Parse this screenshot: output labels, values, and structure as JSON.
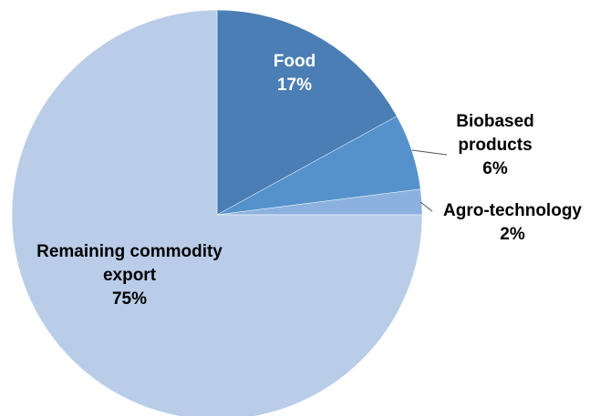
{
  "chart_data": {
    "type": "pie",
    "title": "",
    "slices": [
      {
        "label_lines": [
          "Food"
        ],
        "percent_label": "17%",
        "value": 17,
        "color": "#4a7eb4"
      },
      {
        "label_lines": [
          "Biobased",
          "products"
        ],
        "percent_label": "6%",
        "value": 6,
        "color": "#5592cc"
      },
      {
        "label_lines": [
          "Agro-technology"
        ],
        "percent_label": "2%",
        "value": 2,
        "color": "#8cb1de"
      },
      {
        "label_lines": [
          "Remaining commodity",
          "export"
        ],
        "percent_label": "75%",
        "value": 75,
        "color": "#b9cde9"
      }
    ],
    "start_angle_deg": 0,
    "direction": "clockwise",
    "label_colors": {
      "inside_dark": "#ffffff",
      "default": "#000000"
    }
  }
}
